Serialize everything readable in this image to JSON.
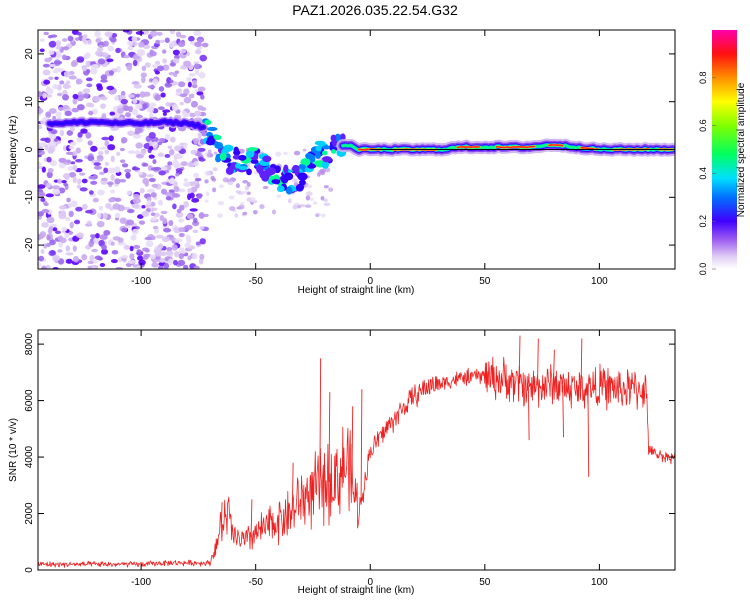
{
  "title": "PAZ1.2026.035.22.54.G32",
  "chart_data": [
    {
      "type": "heatmap",
      "id": "spectrogram",
      "xlabel": "Height of straight line (km)",
      "ylabel": "Frequency (Hz)",
      "xlim": [
        -145,
        133
      ],
      "ylim": [
        -25,
        25
      ],
      "xticks": [
        -100,
        -50,
        0,
        50,
        100
      ],
      "yticks": [
        -20,
        -10,
        0,
        10,
        20
      ],
      "colorbar": {
        "label": "Normalized spectral amplitude",
        "range": [
          0,
          1
        ],
        "ticks": [
          "0.0",
          "0.2",
          "0.4",
          "0.6",
          "0.8"
        ]
      },
      "ridge": {
        "description": "dominant frequency vs height",
        "x": [
          -135,
          -120,
          -110,
          -100,
          -90,
          -80,
          -75,
          -70,
          -65,
          -60,
          -55,
          -50,
          -45,
          -40,
          -35,
          -30,
          -28,
          -25,
          -20,
          -15,
          -10,
          -5,
          0,
          10,
          20,
          30,
          40,
          50,
          60,
          70,
          80,
          90,
          100,
          110,
          120,
          133
        ],
        "y": [
          5.5,
          5.8,
          5.5,
          5.5,
          5.7,
          5.5,
          5.0,
          4.0,
          -1.0,
          -2.5,
          -3.0,
          -2.0,
          -4.0,
          -6.0,
          -6.5,
          -5.5,
          -3.0,
          -1.0,
          -1.0,
          0.5,
          1.0,
          0.0,
          0.0,
          0.0,
          0.0,
          0.0,
          0.5,
          0.5,
          0.5,
          0.5,
          1.0,
          0.5,
          0.0,
          0.0,
          0.0,
          0.0
        ]
      },
      "reference_line": {
        "x": [
          0,
          133
        ],
        "y": [
          0,
          0
        ]
      }
    },
    {
      "type": "line",
      "id": "snr",
      "xlabel": "Height of straight line (km)",
      "ylabel": "SNR (10 * v/v)",
      "xlim": [
        -145,
        133
      ],
      "ylim": [
        0,
        8500
      ],
      "xticks": [
        -100,
        -50,
        0,
        50,
        100
      ],
      "yticks": [
        0,
        2000,
        4000,
        6000,
        8000
      ],
      "color": "#ee2020",
      "series": [
        {
          "name": "SNR",
          "x": [
            -145,
            -130,
            -120,
            -110,
            -100,
            -90,
            -80,
            -70,
            -68,
            -65,
            -62,
            -60,
            -55,
            -50,
            -45,
            -40,
            -35,
            -30,
            -25,
            -20,
            -15,
            -10,
            -5,
            0,
            5,
            10,
            15,
            20,
            25,
            30,
            35,
            40,
            50,
            60,
            70,
            80,
            90,
            100,
            110,
            115,
            120,
            122,
            125,
            130,
            133
          ],
          "y": [
            200,
            200,
            200,
            200,
            200,
            250,
            250,
            250,
            700,
            1500,
            2000,
            1200,
            1000,
            1300,
            1500,
            1800,
            2000,
            2500,
            2800,
            3000,
            3300,
            3800,
            2000,
            4200,
            4800,
            5300,
            5800,
            6200,
            6500,
            6600,
            6700,
            6800,
            6900,
            6700,
            6500,
            6600,
            6400,
            6500,
            6400,
            6400,
            6450,
            4200,
            4100,
            4000,
            4000
          ]
        }
      ],
      "spikes": [
        {
          "x": -65,
          "y": 2400
        },
        {
          "x": -52,
          "y": 2500
        },
        {
          "x": -34,
          "y": 3800
        },
        {
          "x": -22,
          "y": 7500
        },
        {
          "x": -18,
          "y": 6300
        },
        {
          "x": -8,
          "y": 5800
        },
        {
          "x": -4,
          "y": 6400
        },
        {
          "x": 65,
          "y": 8300
        },
        {
          "x": 73,
          "y": 8200
        },
        {
          "x": 80,
          "y": 7800
        },
        {
          "x": 92,
          "y": 8200
        },
        {
          "x": 95,
          "y": 3300
        },
        {
          "x": 69,
          "y": 4600
        },
        {
          "x": 84,
          "y": 4700
        }
      ]
    }
  ]
}
